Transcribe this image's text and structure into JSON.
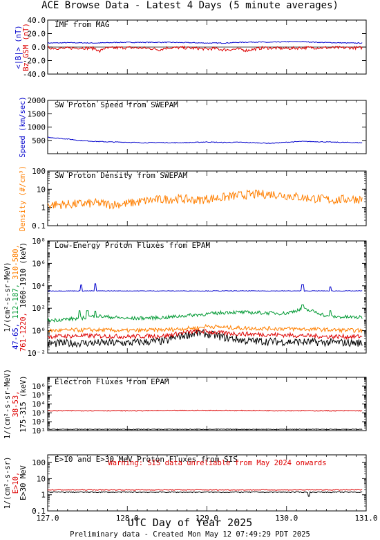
{
  "title": "ACE Browse Data - Latest 4 Days (5 minute averages)",
  "x_axis_title": "UTC Day of Year 2025",
  "footer": "Preliminary data - Created Mon May 12 07:49:29 PDT 2025",
  "colors": {
    "blue": "#0000cc",
    "red": "#dd0000",
    "orange": "#ff7f00",
    "green": "#009933",
    "black": "#000000"
  },
  "chart_data": [
    {
      "id": "mag",
      "type": "line",
      "title": "IMF from MAG",
      "ylabels": [
        {
          "text": "<|B|> (nT)",
          "color": "#0000cc"
        },
        {
          "text": "Bz GSM (nT)",
          "color": "#dd0000"
        }
      ],
      "ylim": [
        -40,
        40
      ],
      "log": false,
      "ticks": [
        {
          "v": -40,
          "t": "-40.0"
        },
        {
          "v": -20,
          "t": "-20.0"
        },
        {
          "v": 0,
          "t": "0.0"
        },
        {
          "v": 20,
          "t": "20.0"
        },
        {
          "v": 40,
          "t": "40.0"
        }
      ],
      "zero_line": true,
      "series": [
        {
          "color": "#0000cc",
          "points": [
            [
              127.0,
              6
            ],
            [
              127.3,
              6.5
            ],
            [
              127.6,
              6
            ],
            [
              127.9,
              7
            ],
            [
              128.2,
              7
            ],
            [
              128.5,
              7
            ],
            [
              128.8,
              6.5
            ],
            [
              129.0,
              6
            ],
            [
              129.2,
              6
            ],
            [
              129.4,
              7
            ],
            [
              129.6,
              7.5
            ],
            [
              129.8,
              7
            ],
            [
              130.0,
              8
            ],
            [
              130.2,
              8
            ],
            [
              130.4,
              7
            ],
            [
              130.6,
              6.5
            ],
            [
              130.8,
              6
            ],
            [
              130.95,
              6
            ]
          ],
          "noise": 0.6
        },
        {
          "color": "#dd0000",
          "points": [
            [
              127.0,
              -1
            ],
            [
              127.2,
              -2
            ],
            [
              127.4,
              -1
            ],
            [
              127.6,
              -2
            ],
            [
              127.65,
              -7
            ],
            [
              127.7,
              -2
            ],
            [
              127.9,
              -1
            ],
            [
              128.1,
              -1
            ],
            [
              128.3,
              -2
            ],
            [
              128.4,
              -4
            ],
            [
              128.5,
              -1
            ],
            [
              128.7,
              -1
            ],
            [
              128.9,
              -2
            ],
            [
              129.0,
              -3
            ],
            [
              129.1,
              -2
            ],
            [
              129.2,
              -4
            ],
            [
              129.4,
              -3
            ],
            [
              129.5,
              -5
            ],
            [
              129.7,
              -1
            ],
            [
              130.0,
              -2
            ],
            [
              130.2,
              -1
            ],
            [
              130.4,
              -1
            ],
            [
              130.6,
              -1
            ],
            [
              130.95,
              -1
            ]
          ],
          "noise": 2.2
        }
      ]
    },
    {
      "id": "swe-speed",
      "type": "line",
      "title": "SW Proton Speed from SWEPAM",
      "ylabels": [
        {
          "text": "Speed (km/sec)",
          "color": "#0000cc"
        }
      ],
      "ylim": [
        0,
        2000
      ],
      "log": false,
      "ticks": [
        {
          "v": 500,
          "t": "500"
        },
        {
          "v": 1000,
          "t": "1000"
        },
        {
          "v": 1500,
          "t": "1500"
        },
        {
          "v": 2000,
          "t": "2000"
        }
      ],
      "series": [
        {
          "color": "#0000cc",
          "points": [
            [
              127.0,
              620
            ],
            [
              127.1,
              590
            ],
            [
              127.25,
              550
            ],
            [
              127.4,
              500
            ],
            [
              127.6,
              460
            ],
            [
              127.8,
              440
            ],
            [
              128.0,
              430
            ],
            [
              128.2,
              410
            ],
            [
              128.4,
              420
            ],
            [
              128.6,
              410
            ],
            [
              128.8,
              420
            ],
            [
              129.0,
              440
            ],
            [
              129.2,
              420
            ],
            [
              129.4,
              430
            ],
            [
              129.6,
              410
            ],
            [
              129.8,
              390
            ],
            [
              130.0,
              430
            ],
            [
              130.2,
              460
            ],
            [
              130.4,
              450
            ],
            [
              130.6,
              430
            ],
            [
              130.8,
              420
            ],
            [
              130.95,
              410
            ]
          ],
          "noise": 14
        }
      ]
    },
    {
      "id": "swe-density",
      "type": "line",
      "title": "SW Proton Density from SWEPAM",
      "ylabels": [
        {
          "text": "Density (#/cm³)",
          "color": "#ff7f00"
        }
      ],
      "ylim": [
        0.1,
        100
      ],
      "log": true,
      "ticks": [
        {
          "v": 0.1,
          "t": "0.1"
        },
        {
          "v": 1,
          "t": "1"
        },
        {
          "v": 10,
          "t": "10"
        },
        {
          "v": 100,
          "t": "100"
        }
      ],
      "series": [
        {
          "color": "#ff7f00",
          "points": [
            [
              127.0,
              1.4
            ],
            [
              127.3,
              1.5
            ],
            [
              127.6,
              1.7
            ],
            [
              127.8,
              1.5
            ],
            [
              128.0,
              1.6
            ],
            [
              128.3,
              2.5
            ],
            [
              128.6,
              3
            ],
            [
              128.9,
              2.5
            ],
            [
              129.0,
              3
            ],
            [
              129.2,
              3.5
            ],
            [
              129.5,
              5
            ],
            [
              129.8,
              5.5
            ],
            [
              130.0,
              4.5
            ],
            [
              130.2,
              3.5
            ],
            [
              130.4,
              3
            ],
            [
              130.6,
              2.5
            ],
            [
              130.8,
              3
            ],
            [
              130.95,
              2.8
            ]
          ],
          "noise": 0.25
        }
      ]
    },
    {
      "id": "epam-p",
      "type": "line",
      "title": "Low-Energy Proton Fluxes from EPAM",
      "ylabels": [
        {
          "text": "1/(cm²-s-sr-MeV)",
          "color": "#000000"
        }
      ],
      "channels": [
        {
          "label": "47-65,",
          "color": "#0000cc"
        },
        {
          "label": "112-187,",
          "color": "#009933"
        },
        {
          "label": "310-580,",
          "color": "#ff7f00"
        },
        {
          "label": "761-1220,",
          "color": "#dd0000"
        },
        {
          "label": "1060-1910 (keV)",
          "color": "#000000"
        }
      ],
      "ylim": [
        0.01,
        100000000
      ],
      "log": true,
      "ticks": [
        {
          "v": 0.01,
          "t": "10⁻²"
        },
        {
          "v": 1,
          "t": "10⁰"
        },
        {
          "v": 100,
          "t": "10²"
        },
        {
          "v": 10000,
          "t": "10⁴"
        },
        {
          "v": 1000000,
          "t": "10⁶"
        },
        {
          "v": 100000000,
          "t": "10⁸"
        }
      ],
      "series": [
        {
          "color": "#000000",
          "points": [
            [
              127.0,
              0.07
            ],
            [
              127.5,
              0.08
            ],
            [
              128.0,
              0.08
            ],
            [
              128.5,
              0.12
            ],
            [
              128.9,
              0.6
            ],
            [
              129.0,
              0.5
            ],
            [
              129.2,
              0.25
            ],
            [
              129.5,
              0.12
            ],
            [
              130.0,
              0.1
            ],
            [
              130.5,
              0.09
            ],
            [
              130.95,
              0.08
            ]
          ],
          "noise": 0.35
        },
        {
          "color": "#dd0000",
          "points": [
            [
              127.0,
              0.3
            ],
            [
              127.5,
              0.35
            ],
            [
              128.0,
              0.3
            ],
            [
              128.5,
              0.35
            ],
            [
              128.9,
              0.9
            ],
            [
              129.0,
              0.8
            ],
            [
              129.2,
              0.6
            ],
            [
              129.5,
              0.5
            ],
            [
              130.0,
              0.4
            ],
            [
              130.5,
              0.3
            ],
            [
              130.95,
              0.3
            ]
          ],
          "noise": 0.2
        },
        {
          "color": "#ff7f00",
          "points": [
            [
              127.0,
              1.0
            ],
            [
              127.5,
              1.2
            ],
            [
              128.0,
              1.0
            ],
            [
              128.5,
              1.2
            ],
            [
              128.9,
              1.8
            ],
            [
              129.0,
              2.5
            ],
            [
              129.3,
              1.8
            ],
            [
              129.6,
              1.6
            ],
            [
              130.0,
              1.5
            ],
            [
              130.5,
              1.2
            ],
            [
              130.95,
              1.0
            ]
          ],
          "noise": 0.18
        },
        {
          "color": "#009933",
          "points": [
            [
              127.0,
              8
            ],
            [
              127.4,
              12
            ],
            [
              127.6,
              20
            ],
            [
              128.0,
              12
            ],
            [
              128.5,
              15
            ],
            [
              129.0,
              30
            ],
            [
              129.3,
              45
            ],
            [
              129.6,
              40
            ],
            [
              130.0,
              35
            ],
            [
              130.2,
              80
            ],
            [
              130.5,
              18
            ],
            [
              130.95,
              15
            ]
          ],
          "noise": 0.16,
          "spikes": [
            [
              127.4,
              60
            ],
            [
              127.5,
              60
            ],
            [
              127.6,
              55
            ],
            [
              130.2,
              200
            ],
            [
              130.55,
              60
            ]
          ]
        },
        {
          "color": "#0000cc",
          "points": [
            [
              127.0,
              3500
            ],
            [
              127.5,
              3500
            ],
            [
              128.0,
              3500
            ],
            [
              128.5,
              3500
            ],
            [
              129.0,
              3500
            ],
            [
              129.5,
              3500
            ],
            [
              130.0,
              3500
            ],
            [
              130.5,
              3500
            ],
            [
              130.95,
              3500
            ]
          ],
          "noise": 0.03,
          "spikes": [
            [
              127.42,
              12000
            ],
            [
              127.6,
              15000
            ],
            [
              130.2,
              13000
            ],
            [
              130.55,
              8000
            ]
          ]
        }
      ]
    },
    {
      "id": "epam-e",
      "type": "line",
      "title": "Electron Fluxes from EPAM",
      "ylabels": [
        {
          "text": "1/(cm²-s-sr-MeV)",
          "color": "#000000"
        }
      ],
      "channels": [
        {
          "label": "38-53,",
          "color": "#dd0000"
        },
        {
          "label": "175-315 (keV)",
          "color": "#000000"
        }
      ],
      "ylim": [
        10,
        10000000
      ],
      "log": true,
      "ticks": [
        {
          "v": 10,
          "t": "10¹"
        },
        {
          "v": 100,
          "t": "10²"
        },
        {
          "v": 1000,
          "t": "10³"
        },
        {
          "v": 10000,
          "t": "10⁴"
        },
        {
          "v": 100000,
          "t": "10⁵"
        },
        {
          "v": 1000000,
          "t": "10⁶"
        }
      ],
      "series": [
        {
          "color": "#000000",
          "points": [
            [
              127.0,
              14
            ],
            [
              128.0,
              14
            ],
            [
              129.0,
              14
            ],
            [
              130.0,
              14
            ],
            [
              130.95,
              14
            ]
          ],
          "noise": 0.04
        },
        {
          "color": "#dd0000",
          "points": [
            [
              127.0,
              1700
            ],
            [
              127.5,
              1750
            ],
            [
              128.0,
              1700
            ],
            [
              128.5,
              1800
            ],
            [
              129.0,
              1900
            ],
            [
              129.5,
              1800
            ],
            [
              130.0,
              1750
            ],
            [
              130.5,
              1700
            ],
            [
              130.95,
              1700
            ]
          ],
          "noise": 0.05
        }
      ]
    },
    {
      "id": "sis",
      "type": "line",
      "title": "E>10 and E>30 MeV Proton Fluxes from SIS",
      "ylabels": [
        {
          "text": "1/(cm²-s-sr)",
          "color": "#000000"
        }
      ],
      "channels": [
        {
          "label": "E>10,",
          "color": "#dd0000"
        },
        {
          "label": "E>30 MeV",
          "color": "#000000"
        }
      ],
      "warning": "Warning: SIS data unreliable from May 2024 onwards",
      "ylim": [
        0.1,
        300
      ],
      "log": true,
      "ticks": [
        {
          "v": 0.1,
          "t": "0.1"
        },
        {
          "v": 1,
          "t": "1"
        },
        {
          "v": 10,
          "t": "10"
        },
        {
          "v": 100,
          "t": "100"
        }
      ],
      "series": [
        {
          "color": "#000000",
          "points": [
            [
              127.0,
              1.45
            ],
            [
              128.0,
              1.45
            ],
            [
              129.0,
              1.45
            ],
            [
              130.0,
              1.45
            ],
            [
              130.95,
              1.45
            ]
          ],
          "noise": 0.03,
          "spikes": [
            [
              130.28,
              0.8
            ]
          ]
        },
        {
          "color": "#dd0000",
          "points": [
            [
              127.0,
              2.0
            ],
            [
              128.0,
              2.0
            ],
            [
              129.0,
              2.0
            ],
            [
              130.0,
              2.0
            ],
            [
              130.95,
              2.0
            ]
          ],
          "noise": 0.02
        }
      ]
    }
  ],
  "x_axis": {
    "range": [
      127.0,
      131.0
    ],
    "ticks": [
      {
        "v": 127.0,
        "t": "127.0"
      },
      {
        "v": 128.0,
        "t": "128.0"
      },
      {
        "v": 129.0,
        "t": "129.0"
      },
      {
        "v": 130.0,
        "t": "130.0"
      },
      {
        "v": 131.0,
        "t": "131.0"
      }
    ]
  }
}
